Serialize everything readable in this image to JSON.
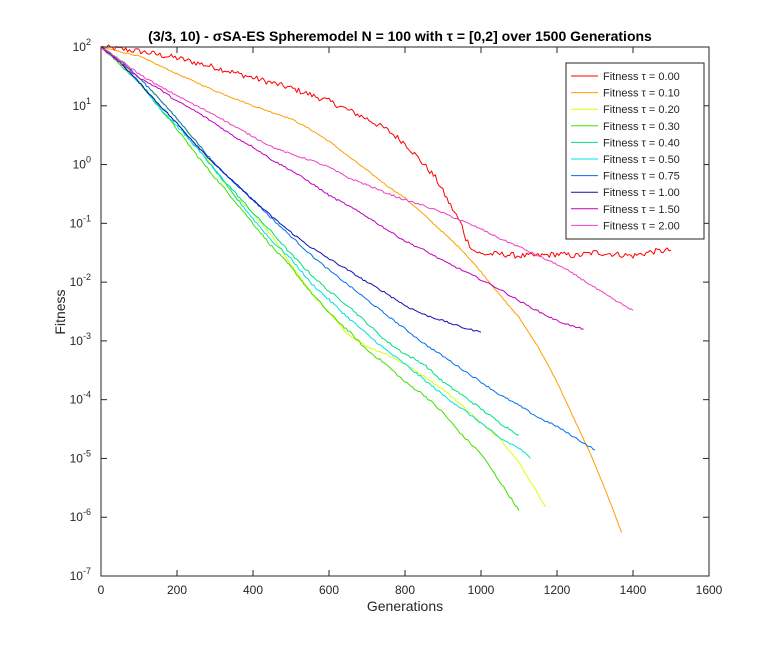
{
  "chart_data": {
    "type": "line",
    "title": "(3/3, 10) - σSA-ES Spheremodel N = 100 with τ = [0,2] over 1500 Generations",
    "xlabel": "Generations",
    "ylabel": "Fitness",
    "xlim": [
      0,
      1600
    ],
    "ylim": [
      1e-07,
      100
    ],
    "yscale": "log",
    "grid": false,
    "legend_position": "top-right",
    "x_ticks": [
      {
        "value": 0,
        "label": "0"
      },
      {
        "value": 200,
        "label": "200"
      },
      {
        "value": 400,
        "label": "400"
      },
      {
        "value": 600,
        "label": "600"
      },
      {
        "value": 800,
        "label": "800"
      },
      {
        "value": 1000,
        "label": "1000"
      },
      {
        "value": 1200,
        "label": "1200"
      },
      {
        "value": 1400,
        "label": "1400"
      },
      {
        "value": 1600,
        "label": "1600"
      }
    ],
    "y_ticks": [
      {
        "value": 100,
        "base": "10",
        "exp": "2"
      },
      {
        "value": 10,
        "base": "10",
        "exp": "1"
      },
      {
        "value": 1,
        "base": "10",
        "exp": "0"
      },
      {
        "value": 0.1,
        "base": "10",
        "exp": "-1"
      },
      {
        "value": 0.01,
        "base": "10",
        "exp": "-2"
      },
      {
        "value": 0.001,
        "base": "10",
        "exp": "-3"
      },
      {
        "value": 0.0001,
        "base": "10",
        "exp": "-4"
      },
      {
        "value": 1e-05,
        "base": "10",
        "exp": "-5"
      },
      {
        "value": 1e-06,
        "base": "10",
        "exp": "-6"
      },
      {
        "value": 1e-07,
        "base": "10",
        "exp": "-7"
      }
    ],
    "series": [
      {
        "name": "Fitness τ = 0.00",
        "color": "#ff0000",
        "noise": 0.05,
        "points": [
          [
            0,
            100
          ],
          [
            100,
            85
          ],
          [
            200,
            65
          ],
          [
            300,
            45
          ],
          [
            400,
            30
          ],
          [
            500,
            20
          ],
          [
            600,
            12
          ],
          [
            700,
            6
          ],
          [
            750,
            4
          ],
          [
            800,
            2.3
          ],
          [
            850,
            1
          ],
          [
            880,
            0.6
          ],
          [
            900,
            0.35
          ],
          [
            920,
            0.2
          ],
          [
            940,
            0.12
          ],
          [
            950,
            0.09
          ],
          [
            960,
            0.055
          ],
          [
            980,
            0.035
          ],
          [
            1000,
            0.03
          ],
          [
            1050,
            0.03
          ],
          [
            1100,
            0.028
          ],
          [
            1150,
            0.028
          ],
          [
            1200,
            0.03
          ],
          [
            1250,
            0.028
          ],
          [
            1300,
            0.032
          ],
          [
            1350,
            0.03
          ],
          [
            1400,
            0.028
          ],
          [
            1450,
            0.033
          ],
          [
            1500,
            0.035
          ]
        ]
      },
      {
        "name": "Fitness τ = 0.10",
        "color": "#ff9f00",
        "noise": 0.01,
        "points": [
          [
            0,
            100
          ],
          [
            100,
            70
          ],
          [
            200,
            35
          ],
          [
            300,
            18
          ],
          [
            400,
            10
          ],
          [
            500,
            6
          ],
          [
            550,
            4
          ],
          [
            600,
            2.5
          ],
          [
            650,
            1.4
          ],
          [
            700,
            0.8
          ],
          [
            750,
            0.45
          ],
          [
            800,
            0.27
          ],
          [
            850,
            0.14
          ],
          [
            900,
            0.07
          ],
          [
            950,
            0.035
          ],
          [
            1000,
            0.015
          ],
          [
            1050,
            0.006
          ],
          [
            1100,
            0.0025
          ],
          [
            1150,
            0.0008
          ],
          [
            1200,
            0.0002
          ],
          [
            1250,
            4e-05
          ],
          [
            1300,
            8e-06
          ],
          [
            1340,
            1.8e-06
          ],
          [
            1370,
            5.5e-07
          ]
        ]
      },
      {
        "name": "Fitness τ = 0.20",
        "color": "#dfff00",
        "noise": 0.015,
        "points": [
          [
            0,
            100
          ],
          [
            50,
            60
          ],
          [
            100,
            30
          ],
          [
            150,
            14
          ],
          [
            200,
            6
          ],
          [
            250,
            2.5
          ],
          [
            300,
            0.8
          ],
          [
            350,
            0.3
          ],
          [
            400,
            0.15
          ],
          [
            450,
            0.06
          ],
          [
            500,
            0.02
          ],
          [
            550,
            0.007
          ],
          [
            600,
            0.003
          ],
          [
            650,
            0.0013
          ],
          [
            700,
            0.0008
          ],
          [
            750,
            0.0006
          ],
          [
            800,
            0.0004
          ],
          [
            850,
            0.00025
          ],
          [
            900,
            0.00015
          ],
          [
            950,
            8e-05
          ],
          [
            1000,
            4e-05
          ],
          [
            1050,
            2.2e-05
          ],
          [
            1100,
            8.5e-06
          ],
          [
            1150,
            2.5e-06
          ],
          [
            1170,
            1.5e-06
          ]
        ]
      },
      {
        "name": "Fitness τ = 0.30",
        "color": "#40e000",
        "noise": 0.02,
        "points": [
          [
            0,
            100
          ],
          [
            50,
            50
          ],
          [
            100,
            25
          ],
          [
            150,
            10
          ],
          [
            200,
            4
          ],
          [
            250,
            1.5
          ],
          [
            300,
            0.6
          ],
          [
            350,
            0.25
          ],
          [
            400,
            0.1
          ],
          [
            450,
            0.04
          ],
          [
            500,
            0.018
          ],
          [
            550,
            0.007
          ],
          [
            600,
            0.003
          ],
          [
            650,
            0.0015
          ],
          [
            700,
            0.0007
          ],
          [
            750,
            0.0004
          ],
          [
            800,
            0.0002
          ],
          [
            850,
            0.00012
          ],
          [
            900,
            6e-05
          ],
          [
            950,
            2.5e-05
          ],
          [
            1000,
            1.2e-05
          ],
          [
            1050,
            4e-06
          ],
          [
            1100,
            1.3e-06
          ]
        ]
      },
      {
        "name": "Fitness τ = 0.40",
        "color": "#00e080",
        "noise": 0.02,
        "points": [
          [
            0,
            100
          ],
          [
            50,
            55
          ],
          [
            100,
            25
          ],
          [
            150,
            11
          ],
          [
            200,
            5
          ],
          [
            250,
            2
          ],
          [
            300,
            0.8
          ],
          [
            350,
            0.35
          ],
          [
            400,
            0.15
          ],
          [
            450,
            0.07
          ],
          [
            500,
            0.03
          ],
          [
            550,
            0.014
          ],
          [
            600,
            0.007
          ],
          [
            650,
            0.004
          ],
          [
            700,
            0.002
          ],
          [
            750,
            0.001
          ],
          [
            800,
            0.0006
          ],
          [
            850,
            0.0004
          ],
          [
            900,
            0.0002
          ],
          [
            950,
            0.00012
          ],
          [
            1000,
            7e-05
          ],
          [
            1050,
            4e-05
          ],
          [
            1100,
            2.5e-05
          ]
        ]
      },
      {
        "name": "Fitness τ = 0.50",
        "color": "#00e0e0",
        "noise": 0.02,
        "points": [
          [
            0,
            100
          ],
          [
            50,
            55
          ],
          [
            100,
            25
          ],
          [
            150,
            10
          ],
          [
            200,
            4.5
          ],
          [
            250,
            2
          ],
          [
            300,
            0.8
          ],
          [
            350,
            0.3
          ],
          [
            400,
            0.12
          ],
          [
            450,
            0.05
          ],
          [
            500,
            0.025
          ],
          [
            550,
            0.01
          ],
          [
            600,
            0.005
          ],
          [
            650,
            0.0025
          ],
          [
            700,
            0.0013
          ],
          [
            750,
            0.0007
          ],
          [
            800,
            0.0004
          ],
          [
            850,
            0.00022
          ],
          [
            900,
            0.00012
          ],
          [
            950,
            7e-05
          ],
          [
            1000,
            4e-05
          ],
          [
            1050,
            2.2e-05
          ],
          [
            1100,
            1.5e-05
          ],
          [
            1130,
            1e-05
          ]
        ]
      },
      {
        "name": "Fitness τ = 0.75",
        "color": "#0070f0",
        "noise": 0.015,
        "points": [
          [
            0,
            100
          ],
          [
            50,
            60
          ],
          [
            100,
            30
          ],
          [
            150,
            14
          ],
          [
            200,
            6
          ],
          [
            250,
            2.5
          ],
          [
            300,
            1
          ],
          [
            350,
            0.5
          ],
          [
            400,
            0.25
          ],
          [
            450,
            0.12
          ],
          [
            500,
            0.06
          ],
          [
            550,
            0.03
          ],
          [
            600,
            0.016
          ],
          [
            650,
            0.009
          ],
          [
            700,
            0.005
          ],
          [
            750,
            0.0028
          ],
          [
            800,
            0.0016
          ],
          [
            850,
            0.0009
          ],
          [
            900,
            0.00055
          ],
          [
            950,
            0.00033
          ],
          [
            1000,
            0.0002
          ],
          [
            1050,
            0.00012
          ],
          [
            1100,
            8e-05
          ],
          [
            1150,
            5e-05
          ],
          [
            1200,
            3.5e-05
          ],
          [
            1250,
            2.2e-05
          ],
          [
            1300,
            1.4e-05
          ]
        ]
      },
      {
        "name": "Fitness τ = 1.00",
        "color": "#1010b0",
        "noise": 0.015,
        "points": [
          [
            0,
            100
          ],
          [
            50,
            55
          ],
          [
            100,
            25
          ],
          [
            150,
            11
          ],
          [
            200,
            5
          ],
          [
            250,
            2.2
          ],
          [
            300,
            1
          ],
          [
            350,
            0.5
          ],
          [
            400,
            0.25
          ],
          [
            450,
            0.13
          ],
          [
            500,
            0.07
          ],
          [
            550,
            0.04
          ],
          [
            600,
            0.025
          ],
          [
            650,
            0.016
          ],
          [
            700,
            0.01
          ],
          [
            750,
            0.0065
          ],
          [
            800,
            0.004
          ],
          [
            850,
            0.0028
          ],
          [
            900,
            0.0022
          ],
          [
            950,
            0.0017
          ],
          [
            1000,
            0.0014
          ]
        ]
      },
      {
        "name": "Fitness τ = 1.50",
        "color": "#c000c0",
        "noise": 0.015,
        "points": [
          [
            0,
            100
          ],
          [
            50,
            55
          ],
          [
            100,
            30
          ],
          [
            150,
            20
          ],
          [
            200,
            12
          ],
          [
            250,
            8
          ],
          [
            300,
            5
          ],
          [
            350,
            3
          ],
          [
            400,
            2
          ],
          [
            450,
            1.2
          ],
          [
            500,
            0.8
          ],
          [
            550,
            0.5
          ],
          [
            600,
            0.3
          ],
          [
            650,
            0.2
          ],
          [
            700,
            0.13
          ],
          [
            750,
            0.08
          ],
          [
            800,
            0.05
          ],
          [
            850,
            0.035
          ],
          [
            900,
            0.023
          ],
          [
            950,
            0.016
          ],
          [
            1000,
            0.011
          ],
          [
            1050,
            0.0075
          ],
          [
            1100,
            0.0048
          ],
          [
            1150,
            0.0032
          ],
          [
            1200,
            0.0022
          ],
          [
            1250,
            0.0017
          ],
          [
            1270,
            0.0016
          ]
        ]
      },
      {
        "name": "Fitness τ = 2.00",
        "color": "#f040c0",
        "noise": 0.015,
        "points": [
          [
            0,
            100
          ],
          [
            50,
            60
          ],
          [
            100,
            35
          ],
          [
            150,
            22
          ],
          [
            200,
            15
          ],
          [
            250,
            10
          ],
          [
            300,
            7
          ],
          [
            350,
            4.5
          ],
          [
            400,
            3
          ],
          [
            450,
            2
          ],
          [
            500,
            1.5
          ],
          [
            550,
            1.2
          ],
          [
            600,
            0.9
          ],
          [
            650,
            0.6
          ],
          [
            700,
            0.45
          ],
          [
            750,
            0.33
          ],
          [
            800,
            0.25
          ],
          [
            850,
            0.2
          ],
          [
            900,
            0.15
          ],
          [
            950,
            0.11
          ],
          [
            1000,
            0.08
          ],
          [
            1050,
            0.055
          ],
          [
            1100,
            0.04
          ],
          [
            1150,
            0.028
          ],
          [
            1200,
            0.02
          ],
          [
            1250,
            0.013
          ],
          [
            1300,
            0.008
          ],
          [
            1350,
            0.005
          ],
          [
            1400,
            0.0033
          ]
        ]
      }
    ]
  }
}
